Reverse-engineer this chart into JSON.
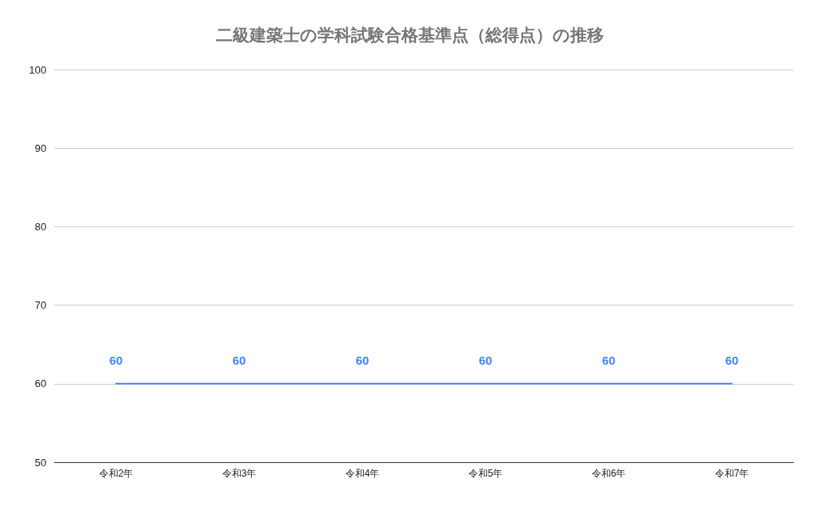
{
  "chart_data": {
    "type": "line",
    "title": "二級建築士の学科試験合格基準点（総得点）の推移",
    "categories": [
      "令和2年",
      "令和3年",
      "令和4年",
      "令和5年",
      "令和6年",
      "令和7年"
    ],
    "series": [
      {
        "color": "#4285f4",
        "values": [
          60,
          60,
          60,
          60,
          60,
          60
        ]
      }
    ],
    "ylim": [
      50,
      100
    ],
    "yticks": [
      50,
      60,
      70,
      80,
      90,
      100
    ],
    "grid": "y",
    "marker": "none",
    "data_labels": true,
    "line_style": "solid"
  }
}
